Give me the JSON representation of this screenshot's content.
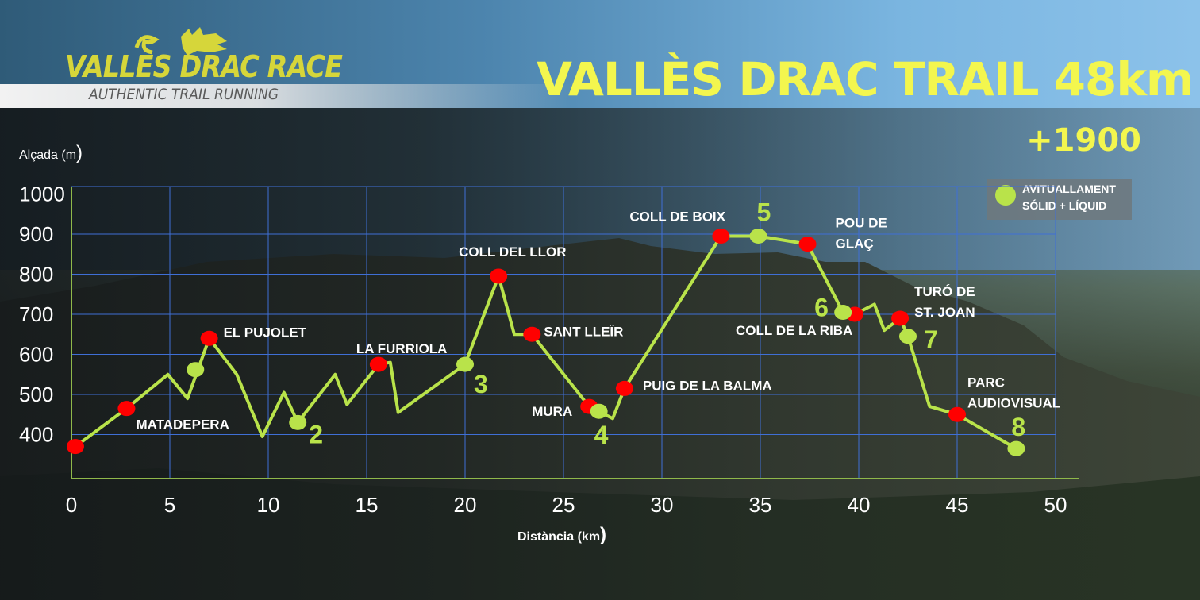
{
  "brand": {
    "logo_text": "VALLÈS DRAC RACE",
    "logo_subtitle": "AUTHENTIC TRAIL RUNNING"
  },
  "header": {
    "title": "VALLÈS DRAC TRAIL 48km",
    "elevation_gain": "+1900"
  },
  "legend": {
    "line1": "AVITUALLAMENT",
    "line2": "SÓLID + LÍQUID"
  },
  "colors": {
    "title": "#f3f64e",
    "profile_line": "#b9e34a",
    "aid_station": "#b9e34a",
    "checkpoint": "#ff0000",
    "grid": "#3f6fd6"
  },
  "chart_data": {
    "type": "line",
    "ylabel": "Alçada (m",
    "ylabel_paren": ")",
    "xlabel": "Distància (km",
    "xlabel_paren": ")",
    "xlim": [
      0,
      50
    ],
    "ylim": [
      300,
      1000
    ],
    "x_ticks": [
      0,
      5,
      10,
      15,
      20,
      25,
      30,
      35,
      40,
      45,
      50
    ],
    "y_ticks": [
      400,
      500,
      600,
      700,
      800,
      900,
      1000
    ],
    "grid": true,
    "legend_position": "top-right",
    "series": [
      {
        "points": [
          [
            0.2,
            370
          ],
          [
            2.8,
            465
          ],
          [
            4.9,
            550
          ],
          [
            5.9,
            490
          ],
          [
            7.0,
            640
          ],
          [
            8.4,
            550
          ],
          [
            9.7,
            395
          ],
          [
            10.8,
            505
          ],
          [
            11.5,
            430
          ],
          [
            13.4,
            550
          ],
          [
            14.0,
            475
          ],
          [
            15.6,
            575
          ],
          [
            16.2,
            580
          ],
          [
            16.6,
            455
          ],
          [
            20.0,
            575
          ],
          [
            21.7,
            795
          ],
          [
            22.5,
            650
          ],
          [
            23.4,
            650
          ],
          [
            26.3,
            470
          ],
          [
            26.8,
            458
          ],
          [
            27.5,
            440
          ],
          [
            28.1,
            515
          ],
          [
            33.0,
            895
          ],
          [
            34.9,
            895
          ],
          [
            37.4,
            875
          ],
          [
            39.2,
            705
          ],
          [
            39.8,
            700
          ],
          [
            40.8,
            725
          ],
          [
            41.3,
            660
          ],
          [
            42.1,
            690
          ],
          [
            42.5,
            645
          ],
          [
            43.6,
            470
          ],
          [
            45.0,
            450
          ],
          [
            48.0,
            365
          ]
        ]
      }
    ],
    "checkpoints": [
      {
        "x": 0.2,
        "y": 370,
        "label": ""
      },
      {
        "x": 2.8,
        "y": 465,
        "label": "MATADEPERA"
      },
      {
        "x": 7.0,
        "y": 640,
        "label": "EL PUJOLET"
      },
      {
        "x": 15.6,
        "y": 575,
        "label": "LA FURRIOLA"
      },
      {
        "x": 21.7,
        "y": 795,
        "label": "COLL DEL LLOR"
      },
      {
        "x": 23.4,
        "y": 650,
        "label": "SANT LLEÏR"
      },
      {
        "x": 26.3,
        "y": 470,
        "label": "MURA"
      },
      {
        "x": 28.1,
        "y": 515,
        "label": "PUIG DE LA BALMA"
      },
      {
        "x": 33.0,
        "y": 895,
        "label": "COLL DE BOIX"
      },
      {
        "x": 37.4,
        "y": 875,
        "label": "POU DE GLAÇ"
      },
      {
        "x": 39.8,
        "y": 700,
        "label": "COLL DE LA RIBA"
      },
      {
        "x": 42.1,
        "y": 690,
        "label": "TURÓ DE ST. JOAN"
      },
      {
        "x": 45.0,
        "y": 450,
        "label": "PARC AUDIOVISUAL"
      }
    ],
    "aid_stations": [
      {
        "x": 6.3,
        "y": 562,
        "label": ""
      },
      {
        "x": 11.5,
        "y": 430,
        "label": "2"
      },
      {
        "x": 20.0,
        "y": 575,
        "label": "3"
      },
      {
        "x": 26.8,
        "y": 458,
        "label": "4"
      },
      {
        "x": 34.9,
        "y": 895,
        "label": "5"
      },
      {
        "x": 39.2,
        "y": 705,
        "label": "6"
      },
      {
        "x": 42.5,
        "y": 645,
        "label": "7"
      },
      {
        "x": 48.0,
        "y": 365,
        "label": "8"
      }
    ]
  }
}
